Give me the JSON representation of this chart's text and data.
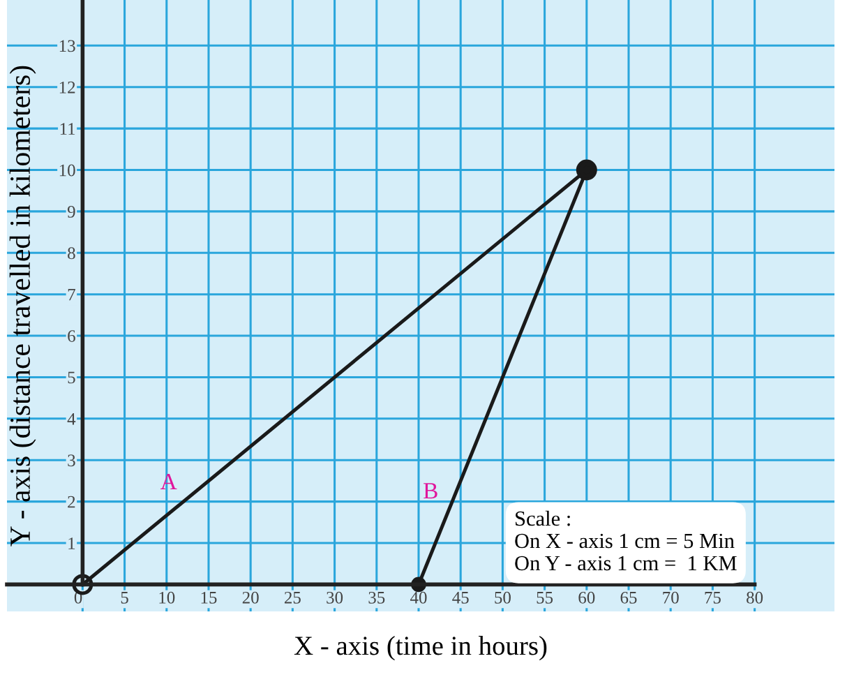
{
  "chart_data": {
    "type": "line",
    "xlabel": "X - axis (time in hours)",
    "ylabel": "Y - axis (distance travelled in kilometers)",
    "series": [
      {
        "name": "A",
        "color": "#1a1a1a",
        "x": [
          0,
          60
        ],
        "values": [
          0,
          10
        ]
      },
      {
        "name": "B",
        "color": "#1a1a1a",
        "x": [
          40,
          60
        ],
        "values": [
          0,
          10
        ]
      }
    ],
    "xlim": [
      -9,
      89.5
    ],
    "ylim": [
      -0.65,
      14.1
    ],
    "xticks": [
      0,
      5,
      10,
      15,
      20,
      25,
      30,
      35,
      40,
      45,
      50,
      55,
      60,
      65,
      70,
      75,
      80
    ],
    "yticks": [
      1,
      2,
      3,
      4,
      5,
      6,
      7,
      8,
      9,
      10,
      11,
      12,
      13
    ],
    "grid": true,
    "marker": "circle",
    "line_style": "solid",
    "legend": false,
    "annotations": [
      "Scale :\nOn X - axis 1 cm = 5 Min\nOn Y - axis 1 cm =  1 KM"
    ]
  }
}
